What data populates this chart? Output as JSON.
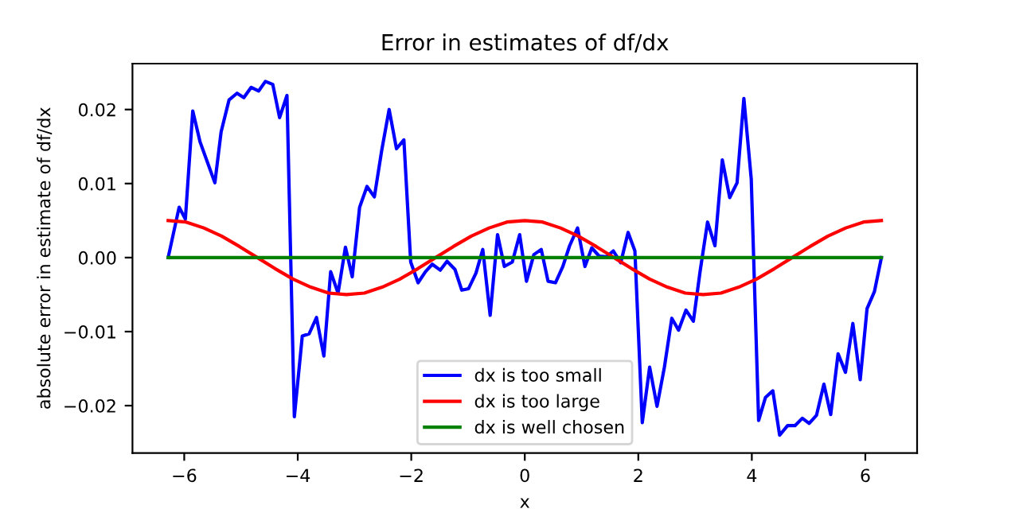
{
  "chart_data": {
    "type": "line",
    "title": "Error in estimates of df/dx",
    "xlabel": "x",
    "ylabel": "absolute error in estimate of df/dx",
    "xlim": [
      -6.912,
      6.912
    ],
    "ylim": [
      -0.0264,
      0.0262
    ],
    "xticks": [
      {
        "value": -6,
        "label": "−6"
      },
      {
        "value": -4,
        "label": "−4"
      },
      {
        "value": -2,
        "label": "−2"
      },
      0,
      2,
      4,
      6
    ],
    "yticks": [
      {
        "value": -0.02,
        "label": "−0.02"
      },
      {
        "value": -0.01,
        "label": "−0.01"
      },
      {
        "value": 0,
        "label": "0.00"
      },
      {
        "value": 0.01,
        "label": "0.01"
      },
      {
        "value": 0.02,
        "label": "0.02"
      }
    ],
    "legend": "bottom",
    "grid": false,
    "series": [
      {
        "name": "dx is too small",
        "color": "#0000ff",
        "x": [
          -6.283,
          -6.09,
          -5.98,
          -5.85,
          -5.72,
          -5.46,
          -5.35,
          -5.21,
          -5.07,
          -4.95,
          -4.82,
          -4.69,
          -4.57,
          -4.44,
          -4.32,
          -4.19,
          -4.06,
          -3.92,
          -3.8,
          -3.67,
          -3.54,
          -3.42,
          -3.29,
          -3.16,
          -3.04,
          -2.91,
          -2.78,
          -2.65,
          -2.52,
          -2.39,
          -2.26,
          -2.13,
          -2.01,
          -1.88,
          -1.75,
          -1.63,
          -1.49,
          -1.37,
          -1.23,
          -1.11,
          -0.99,
          -0.86,
          -0.74,
          -0.61,
          -0.48,
          -0.36,
          -0.22,
          -0.09,
          0.03,
          0.16,
          0.29,
          0.41,
          0.54,
          0.67,
          0.79,
          0.93,
          1.06,
          1.18,
          1.31,
          1.44,
          1.56,
          1.69,
          1.82,
          1.94,
          2.07,
          2.2,
          2.33,
          2.46,
          2.59,
          2.71,
          2.84,
          2.97,
          3.09,
          3.22,
          3.35,
          3.48,
          3.61,
          3.74,
          3.86,
          3.99,
          4.12,
          4.24,
          4.37,
          4.49,
          4.63,
          4.76,
          4.89,
          5.01,
          5.14,
          5.27,
          5.39,
          5.52,
          5.65,
          5.78,
          5.91,
          6.03,
          6.16,
          6.283
        ],
        "values": [
          0,
          0.0068,
          0.0052,
          0.0198,
          0.0156,
          0.0101,
          0.017,
          0.0213,
          0.0222,
          0.0216,
          0.023,
          0.0225,
          0.0238,
          0.0234,
          0.0189,
          0.0219,
          -0.0215,
          -0.0106,
          -0.0103,
          -0.0081,
          -0.0133,
          -0.0019,
          -0.0048,
          0.0014,
          -0.0026,
          0.0068,
          0.0096,
          0.0082,
          0.0145,
          0.02,
          0.0147,
          0.0159,
          -0.0006,
          -0.0034,
          -0.0019,
          -0.0009,
          -0.0017,
          -0.0005,
          -0.0016,
          -0.0044,
          -0.0042,
          -0.0021,
          0.0011,
          -0.0078,
          0.0031,
          -0.0012,
          -0.0006,
          0.0031,
          -0.0032,
          0.0004,
          0.0011,
          -0.0032,
          -0.0034,
          -0.0012,
          0.0016,
          0.004,
          -0.0012,
          0.0013,
          0.0002,
          0.0001,
          0.0009,
          -0.0007,
          0.0034,
          0.0009,
          -0.0223,
          -0.0148,
          -0.0201,
          -0.0148,
          -0.0082,
          -0.0098,
          -0.0071,
          -0.0086,
          -0.0018,
          0.0048,
          0.0016,
          0.0132,
          0.0081,
          0.0101,
          0.0215,
          0.0106,
          -0.022,
          -0.0189,
          -0.018,
          -0.024,
          -0.0227,
          -0.0227,
          -0.0217,
          -0.0224,
          -0.0213,
          -0.0171,
          -0.0212,
          -0.013,
          -0.0155,
          -0.0089,
          -0.0165,
          -0.0069,
          -0.0046,
          0
        ]
      },
      {
        "name": "dx is too large",
        "color": "#ff0000",
        "x": [
          -6.283,
          -5.969,
          -5.655,
          -5.341,
          -5.027,
          -4.712,
          -4.398,
          -4.084,
          -3.77,
          -3.456,
          -3.142,
          -2.827,
          -2.513,
          -2.199,
          -1.885,
          -1.571,
          -1.257,
          -0.942,
          -0.628,
          -0.314,
          0,
          0.314,
          0.628,
          0.942,
          1.257,
          1.571,
          1.885,
          2.199,
          2.513,
          2.827,
          3.142,
          3.456,
          3.77,
          4.084,
          4.398,
          4.712,
          5.027,
          5.341,
          5.655,
          5.969,
          6.283
        ],
        "values": [
          0.005,
          0.0048,
          0.004,
          0.0029,
          0.0015,
          0,
          -0.0015,
          -0.0029,
          -0.004,
          -0.0048,
          -0.005,
          -0.0048,
          -0.004,
          -0.0029,
          -0.0015,
          0,
          0.0015,
          0.0029,
          0.004,
          0.0048,
          0.005,
          0.0048,
          0.004,
          0.0029,
          0.0015,
          0,
          -0.0015,
          -0.0029,
          -0.004,
          -0.0048,
          -0.005,
          -0.0048,
          -0.004,
          -0.0029,
          -0.0015,
          0,
          0.0015,
          0.0029,
          0.004,
          0.0048,
          0.005
        ]
      },
      {
        "name": "dx is well chosen",
        "color": "#008000",
        "x": [
          -6.283,
          6.283
        ],
        "values": [
          0,
          0
        ]
      }
    ]
  }
}
